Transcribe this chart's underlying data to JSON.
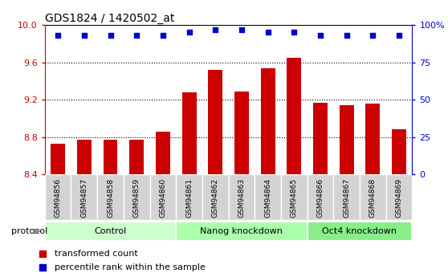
{
  "title": "GDS1824 / 1420502_at",
  "samples": [
    "GSM94856",
    "GSM94857",
    "GSM94858",
    "GSM94859",
    "GSM94860",
    "GSM94861",
    "GSM94862",
    "GSM94863",
    "GSM94864",
    "GSM94865",
    "GSM94866",
    "GSM94867",
    "GSM94868",
    "GSM94869"
  ],
  "bar_values": [
    8.73,
    8.77,
    8.77,
    8.77,
    8.86,
    9.28,
    9.52,
    9.29,
    9.54,
    9.65,
    9.17,
    9.14,
    9.16,
    8.88
  ],
  "dot_values": [
    93,
    93,
    93,
    93,
    93,
    95,
    97,
    97,
    95,
    95,
    93,
    93,
    93,
    93
  ],
  "ylim_left": [
    8.4,
    10.0
  ],
  "ylim_right": [
    0,
    100
  ],
  "yticks_left": [
    8.4,
    8.8,
    9.2,
    9.6,
    10.0
  ],
  "yticks_right": [
    0,
    25,
    50,
    75,
    100
  ],
  "grid_values": [
    8.8,
    9.2,
    9.6
  ],
  "bar_color": "#cc0000",
  "dot_color": "#0000cc",
  "groups": [
    {
      "label": "Control",
      "start": 0,
      "end": 5,
      "color": "#ccffcc"
    },
    {
      "label": "Nanog knockdown",
      "start": 5,
      "end": 10,
      "color": "#aaffaa"
    },
    {
      "label": "Oct4 knockdown",
      "start": 10,
      "end": 14,
      "color": "#88ee88"
    }
  ],
  "legend_bar_label": "transformed count",
  "legend_dot_label": "percentile rank within the sample",
  "protocol_label": "protocol",
  "title_fontsize": 10,
  "tick_fontsize": 7,
  "axis_label_color_left": "#cc0000",
  "axis_label_color_right": "#0000cc",
  "cell_bg_color": "#d3d3d3",
  "bar_width": 0.55
}
